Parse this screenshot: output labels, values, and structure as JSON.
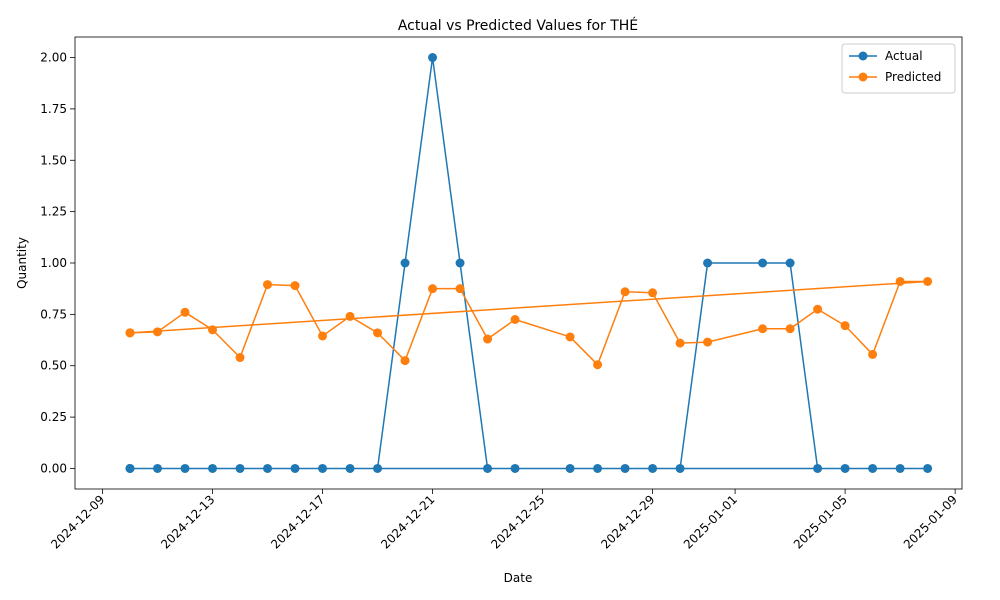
{
  "chart_data": {
    "type": "line",
    "title": "Actual vs Predicted Values for THÉ",
    "xlabel": "Date",
    "ylabel": "Quantity",
    "ylim": [
      -0.1,
      2.1
    ],
    "xlim": [
      "2024-12-08T00:00",
      "2025-01-09T06:00"
    ],
    "x_ticks": [
      "2024-12-09",
      "2024-12-13",
      "2024-12-17",
      "2024-12-21",
      "2024-12-25",
      "2024-12-29",
      "2025-01-01",
      "2025-01-05",
      "2025-01-09"
    ],
    "y_ticks": [
      "0.00",
      "0.25",
      "0.50",
      "0.75",
      "1.00",
      "1.25",
      "1.50",
      "1.75",
      "2.00"
    ],
    "legend_position": "top-right",
    "grid": false,
    "series": [
      {
        "name": "Actual",
        "color": "#1f77b4",
        "points": [
          [
            "2024-12-10",
            0
          ],
          [
            "2024-12-11",
            0
          ],
          [
            "2024-12-12",
            0
          ],
          [
            "2024-12-13",
            0
          ],
          [
            "2024-12-14",
            0
          ],
          [
            "2024-12-15",
            0
          ],
          [
            "2024-12-16",
            0
          ],
          [
            "2024-12-17",
            0
          ],
          [
            "2024-12-18",
            0
          ],
          [
            "2024-12-19",
            0
          ],
          [
            "2024-12-20",
            1
          ],
          [
            "2024-12-21",
            2
          ],
          [
            "2024-12-22",
            1
          ],
          [
            "2024-12-23",
            0
          ],
          [
            "2024-12-24",
            0
          ],
          [
            "2024-12-26",
            0
          ],
          [
            "2024-12-27",
            0
          ],
          [
            "2024-12-28",
            0
          ],
          [
            "2024-12-29",
            0
          ],
          [
            "2024-12-30",
            0
          ],
          [
            "2024-12-31",
            1
          ],
          [
            "2025-01-02",
            1
          ],
          [
            "2025-01-03",
            1
          ],
          [
            "2025-01-04",
            0
          ],
          [
            "2025-01-05",
            0
          ],
          [
            "2025-01-06",
            0
          ],
          [
            "2025-01-07",
            0
          ],
          [
            "2025-01-08",
            0
          ],
          [
            "2024-12-10",
            0
          ]
        ]
      },
      {
        "name": "Predicted",
        "color": "#ff7f0e",
        "points": [
          [
            "2024-12-10",
            0.66
          ],
          [
            "2024-12-11",
            0.665
          ],
          [
            "2024-12-12",
            0.76
          ],
          [
            "2024-12-13",
            0.675
          ],
          [
            "2024-12-14",
            0.54
          ],
          [
            "2024-12-15",
            0.895
          ],
          [
            "2024-12-16",
            0.89
          ],
          [
            "2024-12-17",
            0.645
          ],
          [
            "2024-12-18",
            0.74
          ],
          [
            "2024-12-19",
            0.66
          ],
          [
            "2024-12-20",
            0.525
          ],
          [
            "2024-12-21",
            0.875
          ],
          [
            "2024-12-22",
            0.875
          ],
          [
            "2024-12-23",
            0.63
          ],
          [
            "2024-12-24",
            0.725
          ],
          [
            "2024-12-26",
            0.64
          ],
          [
            "2024-12-27",
            0.505
          ],
          [
            "2024-12-28",
            0.86
          ],
          [
            "2024-12-29",
            0.855
          ],
          [
            "2024-12-30",
            0.61
          ],
          [
            "2024-12-31",
            0.615
          ],
          [
            "2025-01-02",
            0.68
          ],
          [
            "2025-01-03",
            0.68
          ],
          [
            "2025-01-04",
            0.775
          ],
          [
            "2025-01-05",
            0.695
          ],
          [
            "2025-01-06",
            0.555
          ],
          [
            "2025-01-07",
            0.91
          ],
          [
            "2025-01-08",
            0.91
          ],
          [
            "2024-12-10",
            0.66
          ]
        ]
      }
    ]
  }
}
